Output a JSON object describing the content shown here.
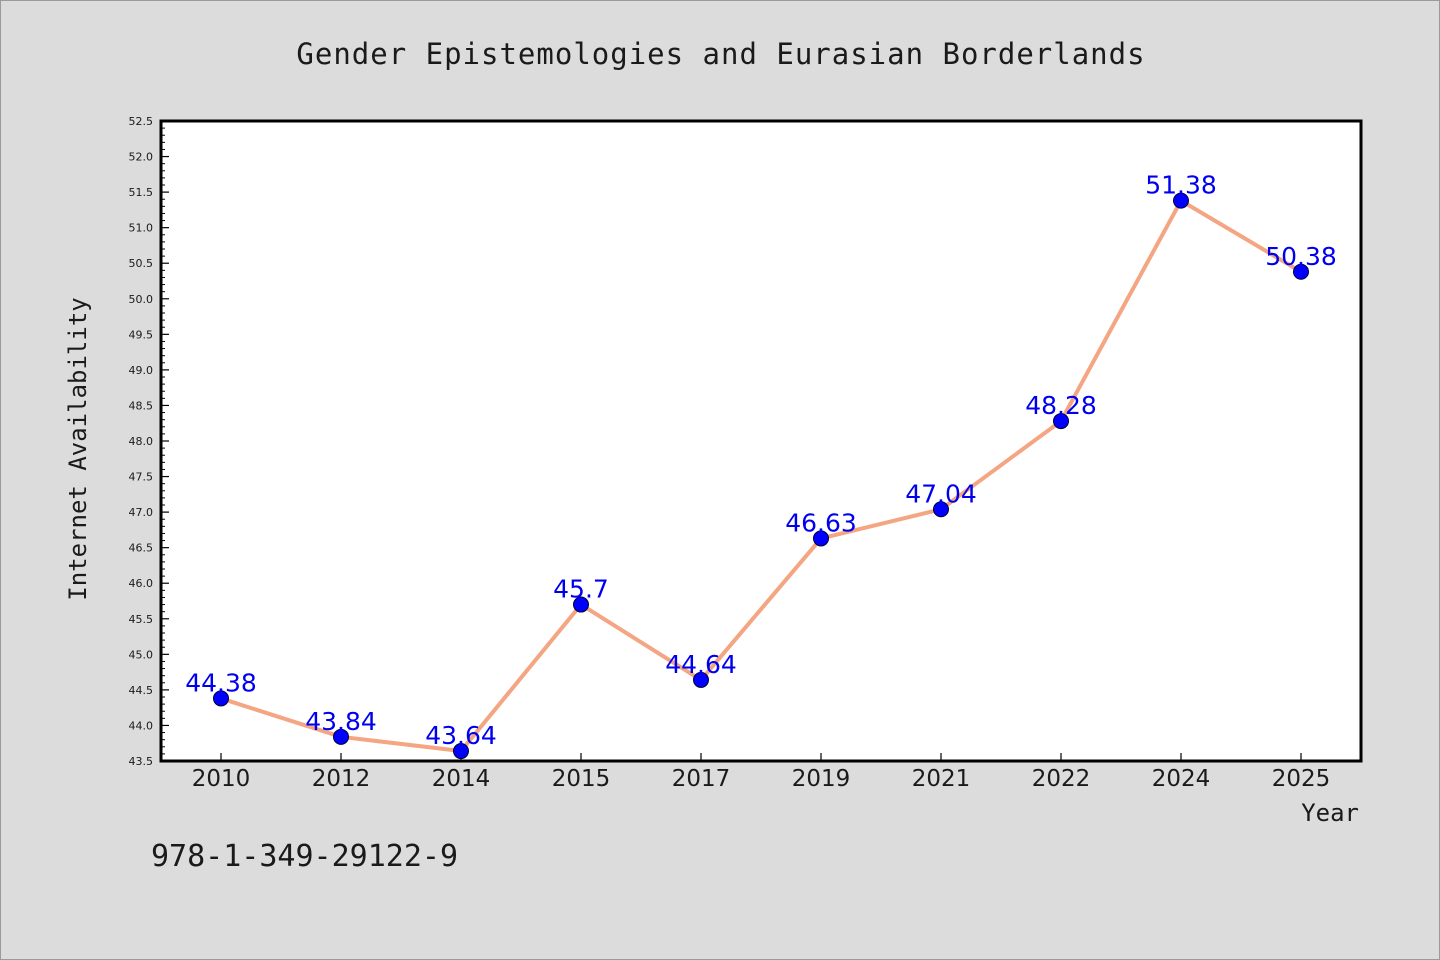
{
  "chart_data": {
    "type": "line",
    "title": "Gender Epistemologies and Eurasian Borderlands",
    "xlabel": "Year",
    "ylabel": "Internet Availability",
    "categories": [
      "2010",
      "2012",
      "2014",
      "2015",
      "2017",
      "2019",
      "2021",
      "2022",
      "2024",
      "2025"
    ],
    "series": [
      {
        "values": [
          44.38,
          43.84,
          43.64,
          45.7,
          44.64,
          46.63,
          47.04,
          48.28,
          51.38,
          50.38
        ],
        "labels": [
          "44.38",
          "43.84",
          "43.64",
          "45.7",
          "44.64",
          "46.63",
          "47.04",
          "48.28",
          "51.38",
          "50.38"
        ]
      }
    ],
    "ylim": [
      43.5,
      52.5
    ],
    "ytick_step": 0.5,
    "grid": false,
    "line_color": "#f4a582",
    "marker_color": "#0000ff",
    "label_color": "#0000ee",
    "background_color": "#dcdcdc",
    "plot_background": "#ffffff"
  },
  "footer": {
    "isbn": "978-1-349-29122-9"
  }
}
